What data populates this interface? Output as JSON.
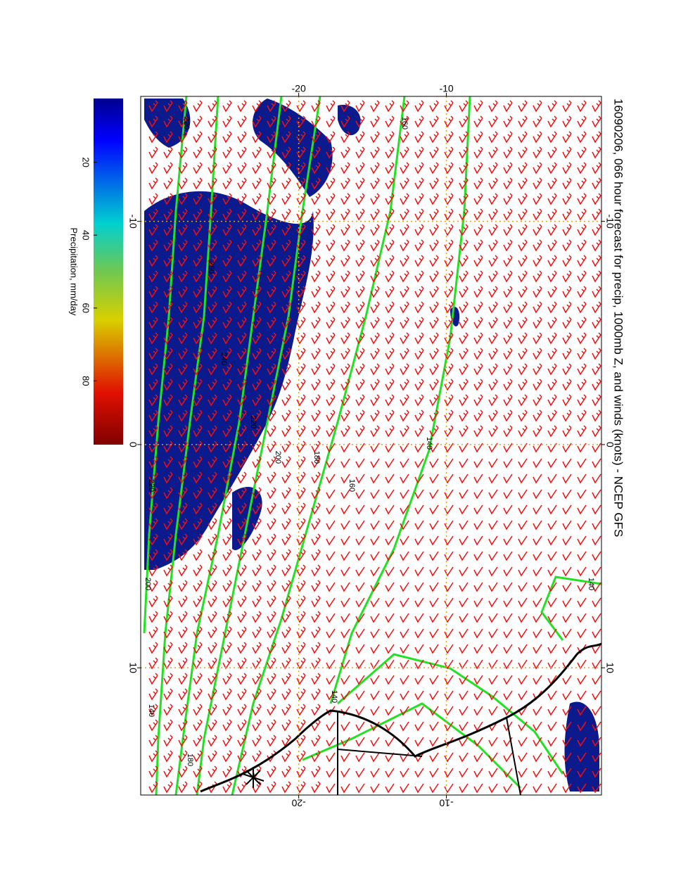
{
  "chart_data": {
    "type": "map",
    "title": "16090206, 066 hour forecast for precip, 1000mb Z, and winds (knots) - NCEP GFS",
    "xlim": [
      -15.6,
      15.7
    ],
    "xticks": [
      -10,
      0,
      10
    ],
    "ylim": [
      -30.7,
      0.5
    ],
    "yticks": [
      -20,
      -10
    ],
    "grid": true,
    "colorbar": {
      "label": "Precipitation, mm/day",
      "lim": [
        2.5,
        97.5
      ],
      "ticks": [
        20,
        40,
        60,
        80
      ]
    },
    "contour_levels": [
      140,
      160,
      180,
      200,
      220,
      240,
      260
    ]
  }
}
